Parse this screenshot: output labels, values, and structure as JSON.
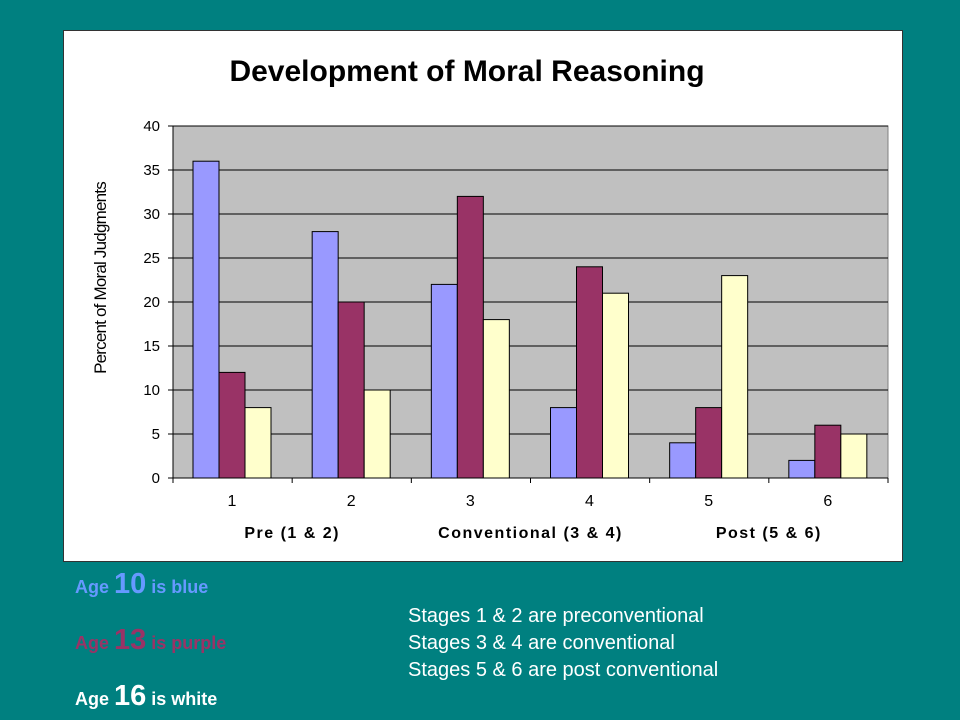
{
  "chart_data": {
    "type": "bar",
    "title": "Development of Moral Reasoning",
    "ylabel": "Percent of Moral Judgments",
    "categories": [
      "1",
      "2",
      "3",
      "4",
      "5",
      "6"
    ],
    "groups": [
      "Pre (1 & 2)",
      "Conventional (3 & 4)",
      "Post (5 & 6)"
    ],
    "ylim": [
      0,
      40
    ],
    "yticks": [
      0,
      5,
      10,
      15,
      20,
      25,
      30,
      35,
      40
    ],
    "grid": true,
    "plot_background": "#c0c0c0",
    "series": [
      {
        "values": [
          36,
          28,
          22,
          8,
          4,
          2
        ],
        "color": "#9999ff"
      },
      {
        "values": [
          12,
          20,
          32,
          24,
          8,
          6
        ],
        "color": "#993366"
      },
      {
        "values": [
          8,
          10,
          18,
          21,
          23,
          5
        ],
        "color": "#ffffcc"
      }
    ]
  },
  "legend": {
    "blue": {
      "prefix": "Age ",
      "age": "10",
      "suffix": " is blue",
      "color": "#6699ff"
    },
    "purple": {
      "prefix": "Age ",
      "age": "13",
      "suffix": " is purple",
      "color": "#993366"
    },
    "white": {
      "prefix": "Age ",
      "age": "16",
      "suffix": " is white",
      "color": "#ffffff"
    }
  },
  "notes": [
    "Stages 1 & 2 are preconventional",
    "Stages 3 & 4 are conventional",
    "Stages 5 & 6 are post conventional"
  ]
}
